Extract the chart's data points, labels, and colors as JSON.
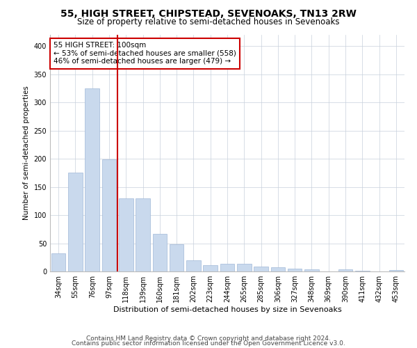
{
  "title1": "55, HIGH STREET, CHIPSTEAD, SEVENOAKS, TN13 2RW",
  "title2": "Size of property relative to semi-detached houses in Sevenoaks",
  "xlabel": "Distribution of semi-detached houses by size in Sevenoaks",
  "ylabel": "Number of semi-detached properties",
  "categories": [
    "34sqm",
    "55sqm",
    "76sqm",
    "97sqm",
    "118sqm",
    "139sqm",
    "160sqm",
    "181sqm",
    "202sqm",
    "223sqm",
    "244sqm",
    "265sqm",
    "285sqm",
    "306sqm",
    "327sqm",
    "348sqm",
    "369sqm",
    "390sqm",
    "411sqm",
    "432sqm",
    "453sqm"
  ],
  "values": [
    32,
    176,
    325,
    199,
    130,
    130,
    67,
    48,
    20,
    11,
    14,
    14,
    9,
    7,
    5,
    4,
    0,
    4,
    1,
    0,
    3
  ],
  "bar_color": "#c9d9ed",
  "bar_edge_color": "#a0b8d8",
  "vline_index": 3,
  "annotation_line1": "55 HIGH STREET: 100sqm",
  "annotation_line2": "← 53% of semi-detached houses are smaller (558)",
  "annotation_line3": "46% of semi-detached houses are larger (479) →",
  "vline_color": "#cc0000",
  "box_color": "#cc0000",
  "annotation_fontsize": 7.5,
  "ylim": [
    0,
    420
  ],
  "yticks": [
    0,
    50,
    100,
    150,
    200,
    250,
    300,
    350,
    400
  ],
  "grid_color": "#c8d0dc",
  "footer1": "Contains HM Land Registry data © Crown copyright and database right 2024.",
  "footer2": "Contains public sector information licensed under the Open Government Licence v3.0.",
  "title1_fontsize": 10,
  "title2_fontsize": 8.5,
  "xlabel_fontsize": 8,
  "ylabel_fontsize": 7.5,
  "tick_fontsize": 7,
  "footer_fontsize": 6.5
}
